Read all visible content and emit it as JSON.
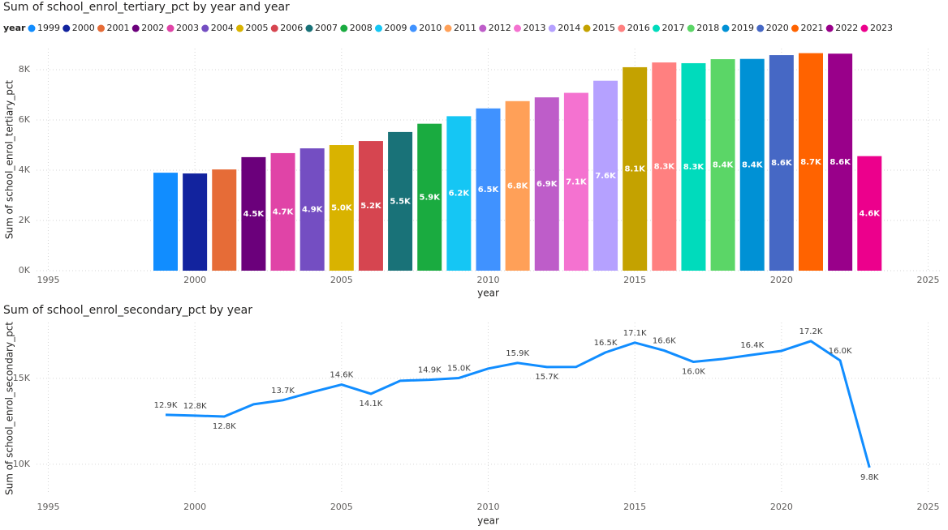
{
  "chart_data": [
    {
      "type": "bar",
      "title": "Sum of school_enrol_tertiary_pct by year and year",
      "legend_title": "year",
      "x_label": "year",
      "y_label": "Sum of school_enrol_tertiary_pct",
      "x": [
        1999,
        2000,
        2001,
        2002,
        2003,
        2004,
        2005,
        2006,
        2007,
        2008,
        2009,
        2010,
        2011,
        2012,
        2013,
        2014,
        2015,
        2016,
        2017,
        2018,
        2019,
        2020,
        2021,
        2022,
        2023
      ],
      "values": [
        3900,
        3870,
        4030,
        4520,
        4680,
        4870,
        5000,
        5160,
        5520,
        5850,
        6150,
        6460,
        6750,
        6900,
        7080,
        7560,
        8100,
        8290,
        8260,
        8420,
        8430,
        8580,
        8660,
        8640,
        4560
      ],
      "value_labels": [
        null,
        null,
        null,
        "4.5K",
        "4.7K",
        "4.9K",
        "5.0K",
        "5.2K",
        "5.5K",
        "5.9K",
        "6.2K",
        "6.5K",
        "6.8K",
        "6.9K",
        "7.1K",
        "7.6K",
        "8.1K",
        "8.3K",
        "8.3K",
        "8.4K",
        "8.4K",
        "8.6K",
        "8.7K",
        "8.6K",
        "4.6K"
      ],
      "colors": [
        "#118DFF",
        "#12239E",
        "#E66C37",
        "#6B007B",
        "#E044A7",
        "#744EC2",
        "#D9B300",
        "#D64550",
        "#197278",
        "#1AAB40",
        "#15C6F4",
        "#4092FF",
        "#FFA058",
        "#BE5DC9",
        "#F472D0",
        "#B5A1FF",
        "#C4A200",
        "#FF8080",
        "#00DBBC",
        "#5BD667",
        "#0091D5",
        "#4668C5",
        "#FF6300",
        "#99008A",
        "#EC008C"
      ],
      "xlim": [
        1994.6,
        2025.4
      ],
      "xticks": [
        1995,
        2000,
        2005,
        2010,
        2015,
        2020,
        2025
      ],
      "ylim": [
        0,
        8840
      ],
      "yticks": [
        {
          "value": 0,
          "label": "0K"
        },
        {
          "value": 2000,
          "label": "2K"
        },
        {
          "value": 4000,
          "label": "4K"
        },
        {
          "value": 6000,
          "label": "6K"
        },
        {
          "value": 8000,
          "label": "8K"
        }
      ],
      "grid": true
    },
    {
      "type": "line",
      "title": "Sum of school_enrol_secondary_pct by year",
      "x_label": "year",
      "y_label": "Sum of school_enrol_secondary_pct",
      "x": [
        1999,
        2000,
        2001,
        2002,
        2003,
        2004,
        2005,
        2006,
        2007,
        2008,
        2009,
        2010,
        2011,
        2012,
        2013,
        2014,
        2015,
        2016,
        2017,
        2018,
        2019,
        2020,
        2021,
        2022,
        2023
      ],
      "values": [
        12880,
        12830,
        12780,
        13490,
        13730,
        14200,
        14640,
        14100,
        14860,
        14920,
        15020,
        15570,
        15900,
        15660,
        15670,
        16510,
        17080,
        16620,
        15960,
        16130,
        16370,
        16600,
        17170,
        16040,
        9810
      ],
      "value_labels": [
        "12.9K",
        "12.8K",
        "12.8K",
        null,
        "13.7K",
        null,
        "14.6K",
        "14.1K",
        null,
        "14.9K",
        "15.0K",
        null,
        "15.9K",
        "15.7K",
        null,
        "16.5K",
        "17.1K",
        "16.6K",
        "16.0K",
        null,
        "16.4K",
        null,
        "17.2K",
        "16.0K",
        "9.8K"
      ],
      "color": "#118DFF",
      "xlim": [
        1994.6,
        2025.4
      ],
      "xticks": [
        1995,
        2000,
        2005,
        2010,
        2015,
        2020,
        2025
      ],
      "ylim": [
        8250,
        18250
      ],
      "yticks": [
        {
          "value": 10000,
          "label": "10K"
        },
        {
          "value": 15000,
          "label": "15K"
        }
      ],
      "grid": true
    }
  ]
}
